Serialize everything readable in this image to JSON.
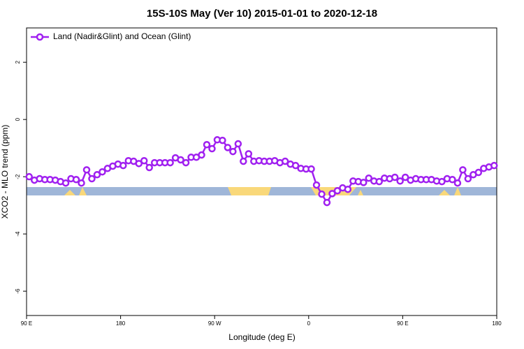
{
  "chart_data": {
    "type": "line",
    "title": "15S-10S May (Ver 10)   2015-01-01 to 2020-12-18",
    "xlabel": "Longitude (deg E)",
    "ylabel": "XCO2 - MLO trend (ppm)",
    "xlim": [
      90,
      540
    ],
    "ylim": [
      -6.85,
      3.2
    ],
    "xticks": [
      {
        "value": 90,
        "label": "90 E"
      },
      180,
      {
        "value": 270,
        "label": "90 W"
      },
      {
        "value": 360,
        "label": "0"
      },
      {
        "value": 450,
        "label": "90 E"
      },
      {
        "value": 540,
        "label": "180"
      }
    ],
    "yticks": [
      -6,
      -4,
      -2,
      0,
      2
    ],
    "legend": "top-left",
    "x": [
      92.5,
      97.5,
      102.5,
      107.5,
      112.5,
      117.5,
      122.5,
      127.5,
      132.5,
      137.5,
      142.5,
      147.5,
      152.5,
      157.5,
      162.5,
      167.5,
      172.5,
      177.5,
      182.5,
      187.5,
      192.5,
      197.5,
      202.5,
      207.5,
      212.5,
      217.5,
      222.5,
      227.5,
      232.5,
      237.5,
      242.5,
      247.5,
      252.5,
      257.5,
      262.5,
      267.5,
      272.5,
      277.5,
      282.5,
      287.5,
      292.5,
      297.5,
      302.5,
      307.5,
      312.5,
      317.5,
      322.5,
      327.5,
      332.5,
      337.5,
      342.5,
      347.5,
      352.5,
      357.5,
      362.5,
      367.5,
      372.5,
      377.5,
      382.5,
      387.5,
      392.5,
      397.5,
      402.5,
      407.5,
      412.5,
      417.5,
      422.5,
      427.5,
      432.5,
      437.5,
      442.5,
      447.5,
      452.5,
      457.5,
      462.5,
      467.5,
      472.5,
      477.5,
      482.5,
      487.5,
      492.5,
      497.5,
      502.5,
      507.5,
      512.5,
      517.5,
      522.5,
      527.5,
      532.5,
      537.5
    ],
    "series": [
      {
        "name": "Land (Nadir&Glint) and Ocean (Glint)",
        "color": "#a020f0",
        "values": [
          -2.0,
          -2.12,
          -2.07,
          -2.1,
          -2.1,
          -2.12,
          -2.17,
          -2.22,
          -2.07,
          -2.1,
          -2.22,
          -1.76,
          -2.07,
          -1.93,
          -1.83,
          -1.71,
          -1.63,
          -1.56,
          -1.61,
          -1.44,
          -1.46,
          -1.54,
          -1.44,
          -1.68,
          -1.51,
          -1.51,
          -1.51,
          -1.51,
          -1.34,
          -1.41,
          -1.51,
          -1.32,
          -1.32,
          -1.24,
          -0.88,
          -1.02,
          -0.71,
          -0.73,
          -0.98,
          -1.12,
          -0.85,
          -1.46,
          -1.2,
          -1.46,
          -1.44,
          -1.46,
          -1.46,
          -1.44,
          -1.51,
          -1.46,
          -1.56,
          -1.61,
          -1.71,
          -1.73,
          -1.73,
          -2.29,
          -2.61,
          -2.9,
          -2.59,
          -2.49,
          -2.39,
          -2.44,
          -2.15,
          -2.17,
          -2.2,
          -2.05,
          -2.15,
          -2.17,
          -2.05,
          -2.07,
          -2.02,
          -2.15,
          -2.02,
          -2.12,
          -2.07,
          -2.1,
          -2.1,
          -2.1,
          -2.15,
          -2.17,
          -2.07,
          -2.1,
          -2.22,
          -1.76,
          -2.07,
          -1.93,
          -1.85,
          -1.71,
          -1.66,
          -1.61
        ]
      }
    ]
  }
}
